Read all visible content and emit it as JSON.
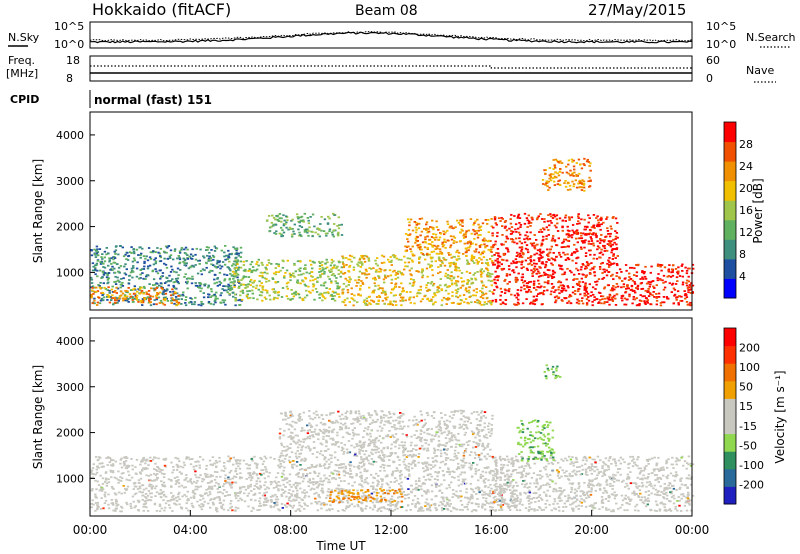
{
  "header": {
    "station": "Hokkaido (fitACF)",
    "beam": "Beam 08",
    "date": "27/May/2015"
  },
  "noise_panel": {
    "left_label": "N.Sky",
    "right_label": "N.Search",
    "left_ticks": [
      "10^5",
      "10^0"
    ],
    "right_ticks": [
      "10^5",
      "10^0"
    ]
  },
  "freq_panel": {
    "left_label_1": "Freq.",
    "left_label_2": "[MHz]",
    "right_label": "Nave",
    "left_ticks": [
      "18",
      "8"
    ],
    "right_ticks": [
      "60",
      "0"
    ]
  },
  "cpid_panel": {
    "label": "CPID",
    "value": "normal (fast) 151"
  },
  "colors": {
    "power_scale": [
      "#0000ff",
      "#1f4fa0",
      "#3f8f7f",
      "#5fb05f",
      "#9fc54a",
      "#f0c000",
      "#f09000",
      "#f05000",
      "#ff0000"
    ],
    "velocity_scale": [
      "#2020c0",
      "#2a6a9a",
      "#2f8f5f",
      "#8fd84f",
      "#c8c8c0",
      "#c8c8c0",
      "#f0a000",
      "#f07000",
      "#ff3000",
      "#ff0000"
    ],
    "ground_scatter": "#c8c8c0"
  },
  "chart_data": [
    {
      "type": "heatmap",
      "name": "power",
      "ylabel": "Slant Range [km]",
      "colorbar_label": "Power [dB]",
      "colorbar_ticks": [
        "28",
        "24",
        "20",
        "16",
        "12",
        "8",
        "4"
      ],
      "y_ticks": [
        "4000",
        "3000",
        "2000",
        "1000"
      ],
      "ylim": [
        180,
        4500
      ],
      "xlim_hours": [
        0,
        24
      ],
      "regions": [
        {
          "t0": 0.0,
          "t1": 6.0,
          "r0": 300,
          "r1": 1600,
          "level": 2
        },
        {
          "t0": 0.0,
          "t1": 3.5,
          "r0": 300,
          "r1": 700,
          "level": 6
        },
        {
          "t0": 5.5,
          "t1": 10.0,
          "r0": 400,
          "r1": 1300,
          "level": 4
        },
        {
          "t0": 7.0,
          "t1": 10.0,
          "r0": 1800,
          "r1": 2300,
          "level": 3
        },
        {
          "t0": 10.0,
          "t1": 16.0,
          "r0": 300,
          "r1": 1400,
          "level": 5
        },
        {
          "t0": 12.5,
          "t1": 16.0,
          "r0": 1400,
          "r1": 2200,
          "level": 6
        },
        {
          "t0": 16.0,
          "t1": 24.0,
          "r0": 300,
          "r1": 1200,
          "level": 8
        },
        {
          "t0": 16.0,
          "t1": 21.0,
          "r0": 1200,
          "r1": 2300,
          "level": 8
        },
        {
          "t0": 18.0,
          "t1": 20.0,
          "r0": 2800,
          "r1": 3500,
          "level": 6
        }
      ]
    },
    {
      "type": "heatmap",
      "name": "velocity",
      "ylabel": "Slant Range [km]",
      "colorbar_label": "Velocity [m s⁻¹]",
      "colorbar_ticks": [
        "200",
        "100",
        "50",
        "15",
        "-15",
        "-50",
        "-100",
        "-200"
      ],
      "y_ticks": [
        "4000",
        "3000",
        "2000",
        "1000"
      ],
      "ylim": [
        180,
        4500
      ],
      "xlim_hours": [
        0,
        24
      ],
      "xlabel": "Time UT",
      "x_ticks": [
        "00:00",
        "04:00",
        "08:00",
        "12:00",
        "16:00",
        "20:00",
        "00:00"
      ],
      "regions": [
        {
          "t0": 0.0,
          "t1": 17.0,
          "r0": 300,
          "r1": 1500,
          "kind": "ground"
        },
        {
          "t0": 7.5,
          "t1": 16.0,
          "r0": 1500,
          "r1": 2500,
          "kind": "ground"
        },
        {
          "t0": 16.0,
          "t1": 24.0,
          "r0": 300,
          "r1": 1500,
          "kind": "ground"
        },
        {
          "t0": 17.0,
          "t1": 18.5,
          "r0": 1400,
          "r1": 2300,
          "kind": "low_pos"
        },
        {
          "t0": 18.0,
          "t1": 18.7,
          "r0": 3200,
          "r1": 3500,
          "kind": "low_pos"
        },
        {
          "t0": 9.5,
          "t1": 12.5,
          "r0": 500,
          "r1": 800,
          "kind": "neg"
        }
      ]
    }
  ]
}
